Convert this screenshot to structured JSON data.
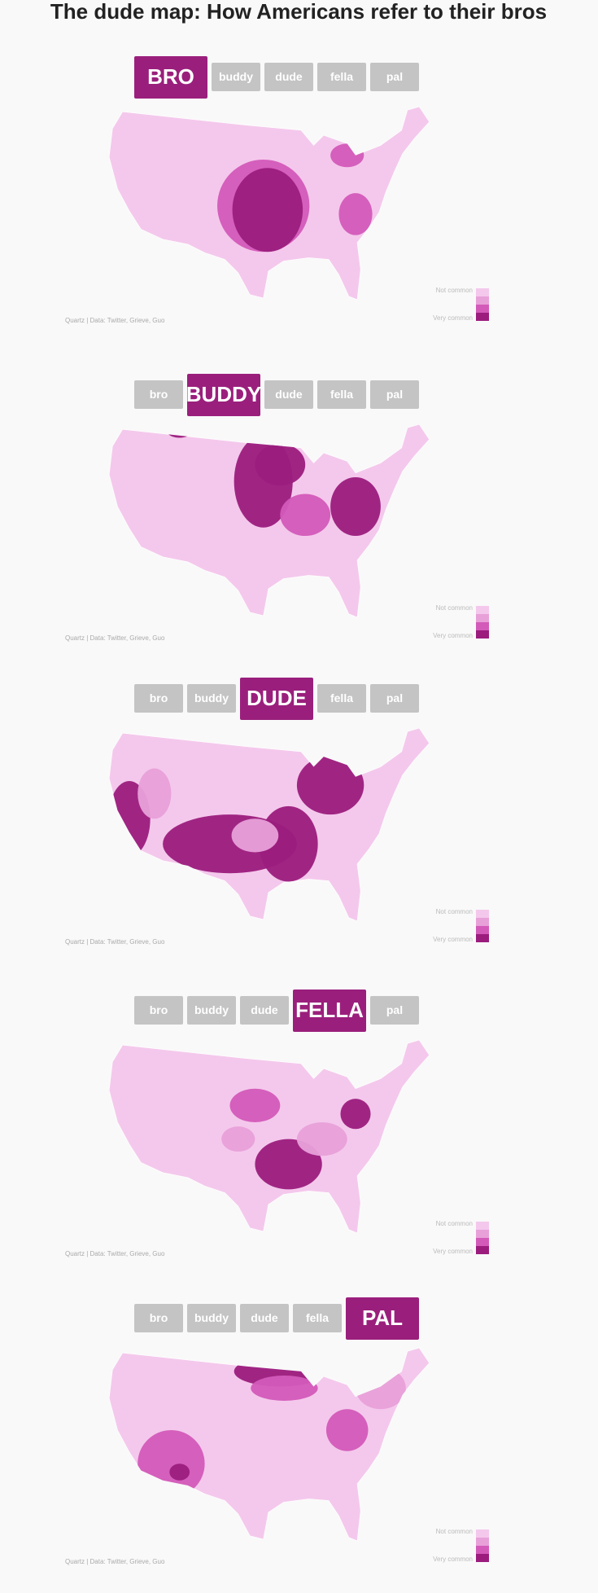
{
  "title": "The dude map: How Americans refer to their bros",
  "legend": {
    "low": "Not common",
    "high": "Very common"
  },
  "source": "Quartz | Data: Twitter, Grieve, Guo",
  "panels": [
    {
      "tabs": [
        "BRO",
        "buddy",
        "dude",
        "fella",
        "pal"
      ],
      "active": 0
    },
    {
      "tabs": [
        "bro",
        "BUDDY",
        "dude",
        "fella",
        "pal"
      ],
      "active": 1
    },
    {
      "tabs": [
        "bro",
        "buddy",
        "DUDE",
        "fella",
        "pal"
      ],
      "active": 2
    },
    {
      "tabs": [
        "bro",
        "buddy",
        "dude",
        "FELLA",
        "pal"
      ],
      "active": 3
    },
    {
      "tabs": [
        "bro",
        "buddy",
        "dude",
        "fella",
        "PAL"
      ],
      "active": 4
    }
  ]
}
